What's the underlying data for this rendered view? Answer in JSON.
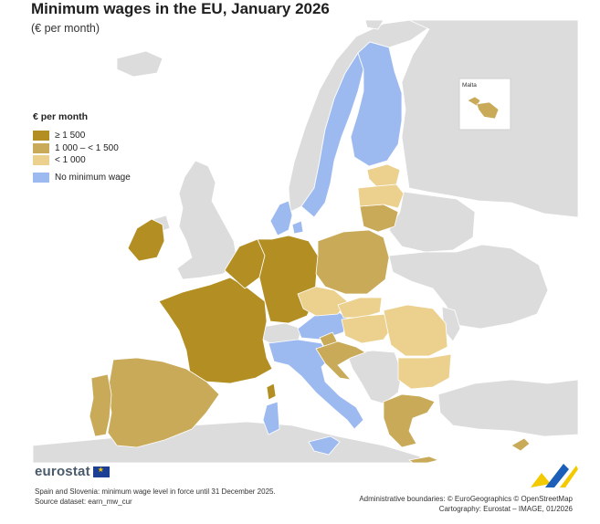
{
  "title": "Minimum wages in the EU, January 2026",
  "subtitle": "(€ per month)",
  "legend": {
    "title": "€ per month",
    "items": [
      {
        "label": "≥ 1 500",
        "color": "#b38f23"
      },
      {
        "label": "1 000 – < 1 500",
        "color": "#c9aa59"
      },
      {
        "label": "< 1 000",
        "color": "#ecd08d"
      },
      {
        "label": "No minimum wage",
        "color": "#9dbaf0"
      }
    ]
  },
  "inset_label": "Malta",
  "logo_text": "eurostat",
  "footnote": [
    "Spain and Slovenia: minimum wage level in force until 31 December 2025.",
    "Source dataset: earn_mw_cur"
  ],
  "credits": [
    "Administrative boundaries: © EuroGeographics © OpenStreetMap",
    "Cartography: Eurostat – IMAGE, 01/2026"
  ],
  "colors": {
    "sea": "#ffffff",
    "non_eu": "#dcdcdc",
    "high": "#b38f23",
    "mid": "#c9aa59",
    "low": "#ecd08d",
    "none": "#9dbaf0"
  },
  "countries": [
    {
      "name": "Ireland",
      "class": "≥ 1 500"
    },
    {
      "name": "France",
      "class": "≥ 1 500"
    },
    {
      "name": "Belgium",
      "class": "≥ 1 500"
    },
    {
      "name": "Netherlands",
      "class": "≥ 1 500"
    },
    {
      "name": "Luxembourg",
      "class": "≥ 1 500"
    },
    {
      "name": "Germany",
      "class": "≥ 1 500"
    },
    {
      "name": "Spain",
      "class": "1 000 – < 1 500"
    },
    {
      "name": "Portugal",
      "class": "1 000 – < 1 500"
    },
    {
      "name": "Poland",
      "class": "1 000 – < 1 500"
    },
    {
      "name": "Lithuania",
      "class": "1 000 – < 1 500"
    },
    {
      "name": "Slovenia",
      "class": "1 000 – < 1 500"
    },
    {
      "name": "Croatia",
      "class": "1 000 – < 1 500"
    },
    {
      "name": "Greece",
      "class": "1 000 – < 1 500"
    },
    {
      "name": "Cyprus",
      "class": "1 000 – < 1 500"
    },
    {
      "name": "Malta",
      "class": "1 000 – < 1 500"
    },
    {
      "name": "Estonia",
      "class": "< 1 000"
    },
    {
      "name": "Latvia",
      "class": "< 1 000"
    },
    {
      "name": "Czechia",
      "class": "< 1 000"
    },
    {
      "name": "Slovakia",
      "class": "< 1 000"
    },
    {
      "name": "Hungary",
      "class": "< 1 000"
    },
    {
      "name": "Romania",
      "class": "< 1 000"
    },
    {
      "name": "Bulgaria",
      "class": "< 1 000"
    },
    {
      "name": "Denmark",
      "class": "No minimum wage"
    },
    {
      "name": "Sweden",
      "class": "No minimum wage"
    },
    {
      "name": "Finland",
      "class": "No minimum wage"
    },
    {
      "name": "Austria",
      "class": "No minimum wage"
    },
    {
      "name": "Italy",
      "class": "No minimum wage"
    }
  ]
}
